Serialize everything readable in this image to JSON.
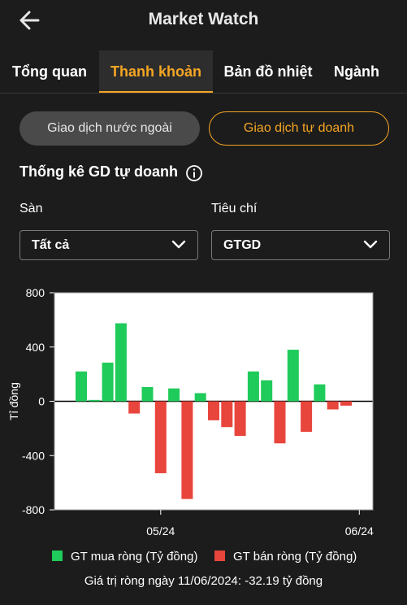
{
  "header": {
    "title": "Market Watch",
    "back_icon": "arrow-left-icon"
  },
  "tabs": [
    {
      "label": "Tổng quan",
      "active": false
    },
    {
      "label": "Thanh khoản",
      "active": true
    },
    {
      "label": "Bản đồ nhiệt",
      "active": false
    },
    {
      "label": "Ngành",
      "active": false
    }
  ],
  "segments": [
    {
      "label": "Giao dịch nước ngoài",
      "selected": false
    },
    {
      "label": "Giao dịch tự doanh",
      "selected": true
    }
  ],
  "section": {
    "title": "Thống kê GD tự doanh",
    "info_icon": "info-icon"
  },
  "filters": {
    "exchange": {
      "label": "Sàn",
      "value": "Tất cả"
    },
    "criteria": {
      "label": "Tiêu chí",
      "value": "GTGD"
    }
  },
  "colors": {
    "accent": "#f5a623",
    "buy": "#1fcb5a",
    "sell": "#e8453c",
    "background": "#1c1c1c"
  },
  "chart_data": {
    "type": "bar",
    "ylabel": "Tỉ đồng",
    "ylim": [
      -800,
      800
    ],
    "y_ticks": [
      800,
      400,
      0,
      -400,
      -800
    ],
    "x_ticks": [
      "05/24",
      "06/24"
    ],
    "x_tick_index": [
      6,
      21
    ],
    "grid": false,
    "legend_position": "bottom",
    "series": [
      {
        "name": "GT mua ròng (Tỷ đồng)",
        "color": "#1fcb5a",
        "values": [
          220,
          10,
          285,
          575,
          null,
          105,
          null,
          95,
          null,
          60,
          null,
          null,
          null,
          220,
          155,
          null,
          380,
          null,
          125,
          null,
          null
        ]
      },
      {
        "name": "GT bán ròng (Tỷ đồng)",
        "color": "#e8453c",
        "values": [
          null,
          null,
          null,
          null,
          -90,
          null,
          -530,
          null,
          -720,
          null,
          -140,
          -190,
          -255,
          null,
          null,
          -310,
          null,
          -225,
          null,
          -60,
          -32.19
        ]
      }
    ],
    "note": "Giá trị ròng ngày 11/06/2024: -32.19 tỷ đồng"
  }
}
